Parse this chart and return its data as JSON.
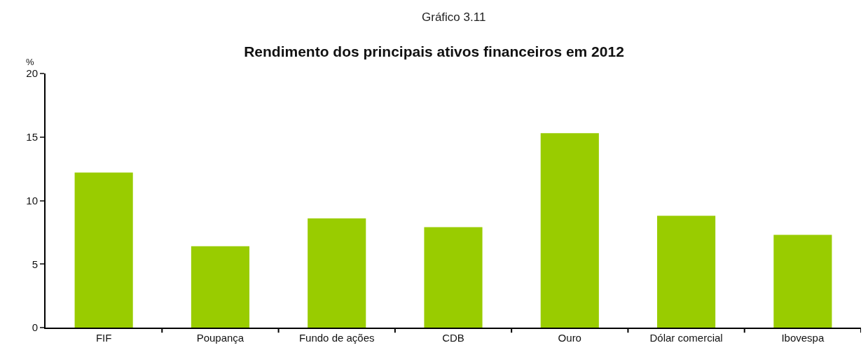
{
  "chart_data": {
    "type": "bar",
    "subtitle": "Gráfico 3.11",
    "title": "Rendimento dos principais ativos financeiros em 2012",
    "ylabel": "%",
    "categories": [
      "FIF",
      "Poupança",
      "Fundo de ações",
      "CDB",
      "Ouro",
      "Dólar comercial",
      "Ibovespa"
    ],
    "values": [
      12.2,
      6.4,
      8.6,
      7.9,
      15.3,
      8.8,
      7.3
    ],
    "color": "#99cc00",
    "ylim": [
      0,
      20
    ],
    "yticks": [
      0,
      5,
      10,
      15,
      20
    ],
    "grid": false,
    "legend": false
  }
}
